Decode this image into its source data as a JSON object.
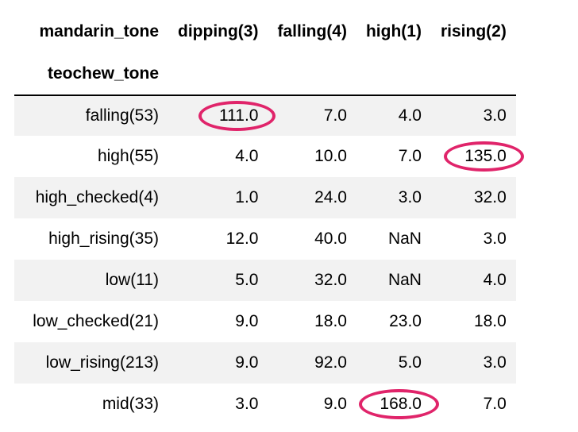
{
  "table": {
    "columns_label": "mandarin_tone",
    "index_label": "teochew_tone",
    "columns": [
      "dipping(3)",
      "falling(4)",
      "high(1)",
      "rising(2)"
    ],
    "rows": [
      {
        "index": "falling(53)",
        "values": [
          "111.0",
          "7.0",
          "4.0",
          "3.0"
        ]
      },
      {
        "index": "high(55)",
        "values": [
          "4.0",
          "10.0",
          "7.0",
          "135.0"
        ]
      },
      {
        "index": "high_checked(4)",
        "values": [
          "1.0",
          "24.0",
          "3.0",
          "32.0"
        ]
      },
      {
        "index": "high_rising(35)",
        "values": [
          "12.0",
          "40.0",
          "NaN",
          "3.0"
        ]
      },
      {
        "index": "low(11)",
        "values": [
          "5.0",
          "32.0",
          "NaN",
          "4.0"
        ]
      },
      {
        "index": "low_checked(21)",
        "values": [
          "9.0",
          "18.0",
          "23.0",
          "18.0"
        ]
      },
      {
        "index": "low_rising(213)",
        "values": [
          "9.0",
          "92.0",
          "5.0",
          "3.0"
        ]
      },
      {
        "index": "mid(33)",
        "values": [
          "3.0",
          "9.0",
          "168.0",
          "7.0"
        ]
      }
    ]
  },
  "highlight_color": "#e0246a"
}
